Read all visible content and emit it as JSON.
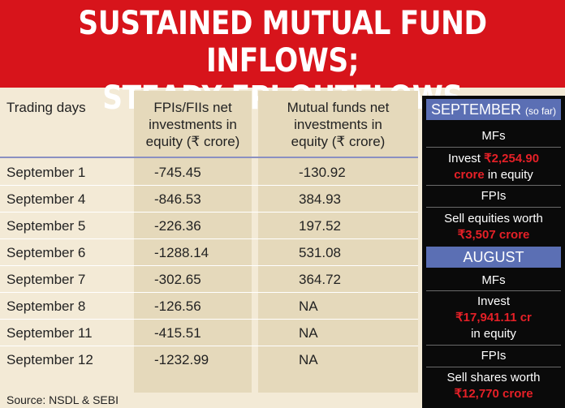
{
  "title": {
    "line1": "SUSTAINED MUTUAL FUND INFLOWS;",
    "line2": "STEADY FPI OUTFLOWS"
  },
  "table": {
    "headers": {
      "col1": "Trading days",
      "col2": [
        "FPIs/FIIs net",
        "investments in",
        "equity (₹ crore)"
      ],
      "col3": [
        "Mutual funds net",
        "investments in",
        "equity (₹ crore)"
      ]
    },
    "rows": [
      {
        "day": "September 1",
        "fpi": "-745.45",
        "mf": "-130.92"
      },
      {
        "day": "September 4",
        "fpi": "-846.53",
        "mf": "384.93"
      },
      {
        "day": "September 5",
        "fpi": "-226.36",
        "mf": "197.52"
      },
      {
        "day": "September 6",
        "fpi": "-1288.14",
        "mf": "531.08"
      },
      {
        "day": "September 7",
        "fpi": "-302.65",
        "mf": "364.72"
      },
      {
        "day": "September 8",
        "fpi": "-126.56",
        "mf": "NA"
      },
      {
        "day": "September 11",
        "fpi": "-415.51",
        "mf": "NA"
      },
      {
        "day": "September 12",
        "fpi": "-1232.99",
        "mf": "NA"
      }
    ],
    "source": "Source: NSDL & SEBI"
  },
  "sidebar": {
    "september": {
      "label": "SEPTEMBER",
      "sublabel": "(so far)",
      "mf_heading": "MFs",
      "mf_pre": "Invest ",
      "mf_amount": "₹2,254.90",
      "mf_unit": "crore",
      "mf_post": " in equity",
      "fpi_heading": "FPIs",
      "fpi_pre": "Sell equities worth",
      "fpi_amount": "₹3,507 crore"
    },
    "august": {
      "label": "AUGUST",
      "mf_heading": "MFs",
      "mf_pre": "Invest",
      "mf_amount": "₹17,941.11 cr",
      "mf_post": "in equity",
      "fpi_heading": "FPIs",
      "fpi_pre": "Sell shares worth",
      "fpi_amount": "₹12,770 crore"
    }
  }
}
